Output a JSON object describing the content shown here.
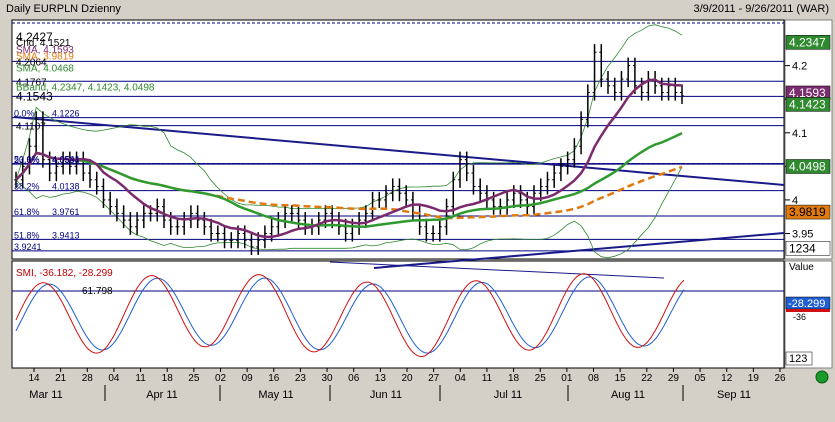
{
  "header": {
    "title": "Daily EURPLN Dzienny",
    "range": "3/9/2011 - 9/26/2011 (WAR)"
  },
  "chart_data": {
    "type": "line",
    "title": "Daily EURPLN Dzienny",
    "price_axis": {
      "ticks": [
        "4.2",
        "4.15",
        "4.1",
        "4.05",
        "4",
        "3.95"
      ],
      "ylim": [
        3.915,
        4.265
      ]
    },
    "osc_axis": {
      "label": "Value",
      "box": "123"
    },
    "value_boxes": [
      {
        "text": "4.2347",
        "y": 4.2347,
        "bg": "#2f8a2f",
        "fg": "#ffffff"
      },
      {
        "text": "4.1593",
        "y": 4.1593,
        "bg": "#7b2a6e",
        "fg": "#ffffff"
      },
      {
        "text": "4.1423",
        "y": 4.1423,
        "bg": "#2f8a2f",
        "fg": "#ffffff"
      },
      {
        "text": "4.0498",
        "y": 4.0498,
        "bg": "#2f8a2f",
        "fg": "#ffffff"
      },
      {
        "text": "3.9819",
        "y": 3.9819,
        "bg": "#e07a10",
        "fg": "#000000"
      },
      {
        "text": "1234",
        "y": 3.928,
        "bg": "#ffffff",
        "fg": "#000000"
      }
    ],
    "osc_boxes": [
      {
        "text": "-28.299",
        "bg": "#1f5fd0",
        "fg": "#ffffff"
      },
      {
        "text": "-36",
        "bg": "#ffffff",
        "fg": "#000000"
      }
    ],
    "legend": [
      {
        "text": "4.2427",
        "y": 4.2427,
        "color": "#000000"
      },
      {
        "text": "Cnd, 4.1521",
        "y": 4.235,
        "color": "#000000"
      },
      {
        "text": "SMA, 4.1593",
        "y": 4.225,
        "color": "#7b2a6e"
      },
      {
        "text": "4.2064",
        "y": 4.2064,
        "color": "#000000"
      },
      {
        "text": "SMA, 3.9819",
        "y": 4.215,
        "color": "#e07a10"
      },
      {
        "text": "SMA, 4.0468",
        "y": 4.197,
        "color": "#2f8a2f"
      },
      {
        "text": "4.1767",
        "y": 4.1767,
        "color": "#000000"
      },
      {
        "text": "BBand, 4.2347, 4.1423, 4.0498",
        "y": 4.169,
        "color": "#2f8a2f"
      },
      {
        "text": "4.1543",
        "y": 4.1543,
        "color": "#000000"
      },
      {
        "text": "4.1107",
        "y": 4.1107,
        "color": "#000000"
      }
    ],
    "fib_levels": [
      {
        "label": "0.0%",
        "value": "4.1226",
        "y": 4.1226
      },
      {
        "label": "50.0%",
        "value": "4.0541",
        "y": 4.0541
      },
      {
        "label": "23.6%",
        "value": "4.0534",
        "y": 4.0534
      },
      {
        "label": "38.2%",
        "value": "4.0138",
        "y": 4.0138
      },
      {
        "label": "61.8%",
        "value": "3.9761",
        "y": 3.9761
      },
      {
        "label": "51.8%",
        "value": "3.9413",
        "y": 3.9413
      },
      {
        "label": "",
        "value": "3.9241",
        "y": 3.9241
      }
    ],
    "osc_label": "SMI, -36.182, -28.299",
    "osc_level": "61.798",
    "x_day_ticks": [
      "14",
      "21",
      "28",
      "04",
      "11",
      "18",
      "25",
      "02",
      "09",
      "16",
      "23",
      "30",
      "06",
      "13",
      "20",
      "27",
      "04",
      "11",
      "18",
      "25",
      "01",
      "08",
      "15",
      "22",
      "29",
      "05",
      "12",
      "19",
      "26"
    ],
    "x_month_labels": [
      "Mar 11",
      "Apr 11",
      "May 11",
      "Jun 11",
      "Jul 11",
      "Aug 11",
      "Sep 11"
    ],
    "close": [
      4.03,
      4.05,
      4.08,
      4.12,
      4.06,
      4.04,
      4.05,
      4.06,
      4.05,
      4.06,
      4.04,
      4.03,
      4.02,
      4.0,
      3.99,
      3.98,
      3.97,
      3.96,
      3.97,
      3.98,
      3.98,
      3.99,
      3.97,
      3.96,
      3.96,
      3.97,
      3.98,
      3.97,
      3.96,
      3.95,
      3.95,
      3.94,
      3.94,
      3.95,
      3.94,
      3.93,
      3.94,
      3.95,
      3.96,
      3.97,
      3.98,
      3.98,
      3.97,
      3.96,
      3.96,
      3.97,
      3.98,
      3.97,
      3.96,
      3.95,
      3.96,
      3.97,
      3.98,
      4.0,
      4.0,
      4.01,
      4.02,
      4.01,
      4.0,
      3.98,
      3.96,
      3.95,
      3.95,
      3.96,
      3.99,
      4.03,
      4.06,
      4.04,
      4.02,
      4.01,
      4.0,
      3.99,
      3.99,
      4.0,
      4.01,
      4.0,
      3.99,
      4.01,
      4.02,
      4.03,
      4.04,
      4.05,
      4.06,
      4.08,
      4.12,
      4.16,
      4.22,
      4.18,
      4.17,
      4.16,
      4.18,
      4.2,
      4.17,
      4.16,
      4.18,
      4.17,
      4.16,
      4.17,
      4.16,
      4.155
    ]
  }
}
